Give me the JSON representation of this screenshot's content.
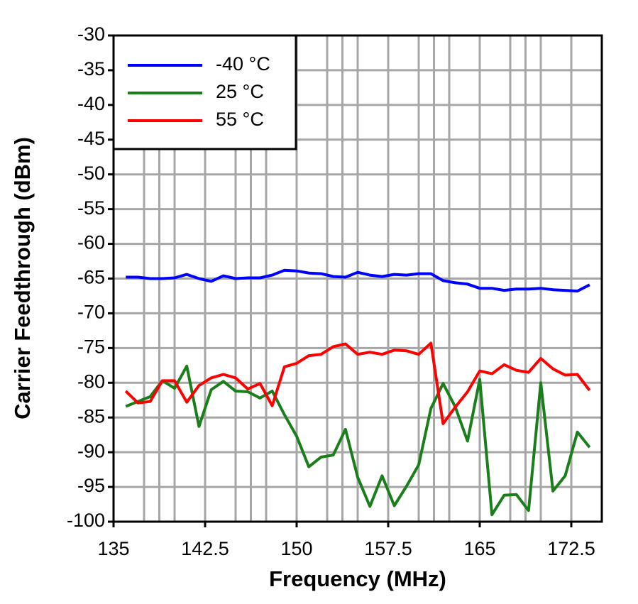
{
  "chart_data": {
    "type": "line",
    "x_label": "Frequency (MHz)",
    "y_label": "Carrier Feedthrough (dBm)",
    "x": [
      136,
      137,
      138,
      139,
      140,
      141,
      142,
      143,
      144,
      145,
      146,
      147,
      148,
      149,
      150,
      151,
      152,
      153,
      154,
      155,
      156,
      157,
      158,
      159,
      160,
      161,
      162,
      163,
      164,
      165,
      166,
      167,
      168,
      169,
      170,
      171,
      172,
      173,
      174
    ],
    "series": [
      {
        "name": "-40 °C",
        "color": "#0000ff",
        "values": [
          -64.8,
          -64.8,
          -65,
          -65,
          -64.9,
          -64.4,
          -65,
          -65.4,
          -64.6,
          -65,
          -64.9,
          -64.9,
          -64.5,
          -63.8,
          -63.9,
          -64.2,
          -64.3,
          -64.7,
          -64.8,
          -64.1,
          -64.5,
          -64.7,
          -64.4,
          -64.5,
          -64.3,
          -64.3,
          -65.3,
          -65.6,
          -65.8,
          -66.4,
          -66.4,
          -66.7,
          -66.5,
          -66.5,
          -66.4,
          -66.6,
          -66.7,
          -66.8,
          -65.9
        ]
      },
      {
        "name": "25 °C",
        "color": "#1a7f1a",
        "values": [
          -83.4,
          -82.7,
          -82,
          -79.7,
          -80.8,
          -77.6,
          -86.3,
          -81,
          -79.8,
          -81.2,
          -81.3,
          -82.2,
          -81.2,
          -84.6,
          -87.7,
          -92.1,
          -90.7,
          -90.4,
          -86.7,
          -93.6,
          -97.8,
          -93.4,
          -97.7,
          -94.9,
          -91.8,
          -83.7,
          -80.1,
          -83.5,
          -88.4,
          -79.5,
          -99,
          -96.2,
          -96.1,
          -98.4,
          -80,
          -95.6,
          -93.4,
          -87.1,
          -89.3
        ]
      },
      {
        "name": "55 °C",
        "color": "#ff0000",
        "values": [
          -81.2,
          -82.9,
          -82.7,
          -79.7,
          -79.7,
          -82.8,
          -80.4,
          -79.3,
          -78.8,
          -79.3,
          -80.9,
          -80.1,
          -83.3,
          -77.7,
          -77.2,
          -76.1,
          -75.9,
          -74.8,
          -74.4,
          -75.9,
          -75.6,
          -75.9,
          -75.3,
          -75.4,
          -75.9,
          -74.3,
          -85.9,
          -83.5,
          -81.3,
          -78.3,
          -78.7,
          -77.4,
          -78.2,
          -78.5,
          -76.5,
          -78,
          -78.9,
          -78.8,
          -81.1
        ]
      }
    ],
    "xlim": [
      135,
      175
    ],
    "xticks": [
      135,
      142.5,
      150,
      157.5,
      165,
      172.5
    ],
    "ylim": [
      -100,
      -30
    ],
    "yticks": [
      -100,
      -95,
      -90,
      -85,
      -80,
      -75,
      -70,
      -65,
      -60,
      -55,
      -50,
      -45,
      -40,
      -35,
      -30
    ],
    "grid": true,
    "legend": "top-left"
  }
}
